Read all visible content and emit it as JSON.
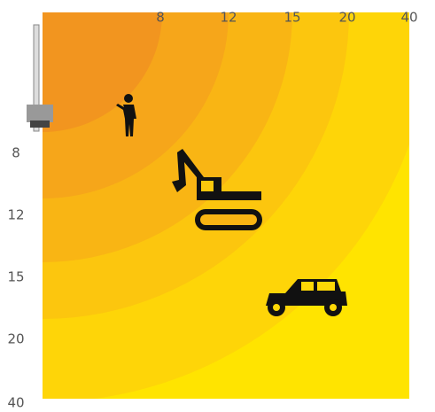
{
  "top_labels": [
    "8",
    "12",
    "15",
    "20",
    "40"
  ],
  "side_labels": [
    "8",
    "12",
    "15",
    "20",
    "40"
  ]
}
